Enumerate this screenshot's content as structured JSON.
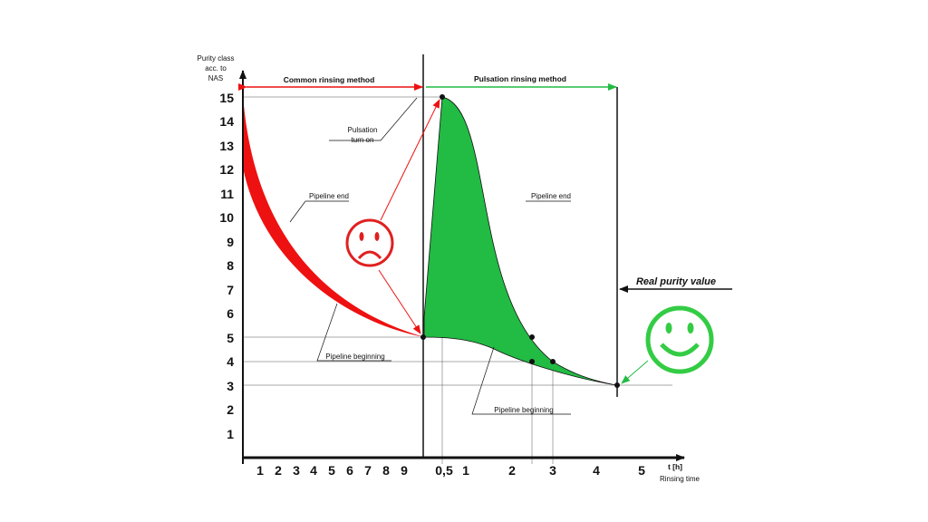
{
  "y_axis": {
    "title_lines": [
      "Purity class",
      "acc. to",
      "NAS"
    ],
    "ticks": [
      "1",
      "2",
      "3",
      "4",
      "5",
      "6",
      "7",
      "8",
      "9",
      "10",
      "11",
      "12",
      "13",
      "14",
      "15"
    ]
  },
  "x_axis": {
    "title": "t [h]",
    "subtitle": "Rinsing time",
    "left_ticks": [
      "1",
      "2",
      "3",
      "4",
      "5",
      "6",
      "7",
      "8",
      "9"
    ],
    "right_ticks": [
      "0,5",
      "1",
      "2",
      "3",
      "4",
      "5"
    ]
  },
  "labels": {
    "common_method": "Common rinsing method",
    "pulsation_method": "Pulsation rinsing method",
    "pulsation_turn_on_line1": "Pulsation",
    "pulsation_turn_on_line2": "turn on",
    "pipeline_end_left": "Pipeline end",
    "pipeline_end_right": "Pipeline end",
    "pipeline_beginning_left": "Pipeline beginning",
    "pipeline_beginning_right": "Pipeline beginning",
    "real_purity": "Real purity value"
  },
  "colors": {
    "common": "#ee1111",
    "pulsation": "#22bb44",
    "sad_face": "#e02020",
    "happy_face": "#33cc44"
  },
  "icons": {
    "sad": "sad-face-icon",
    "happy": "happy-face-icon"
  }
}
